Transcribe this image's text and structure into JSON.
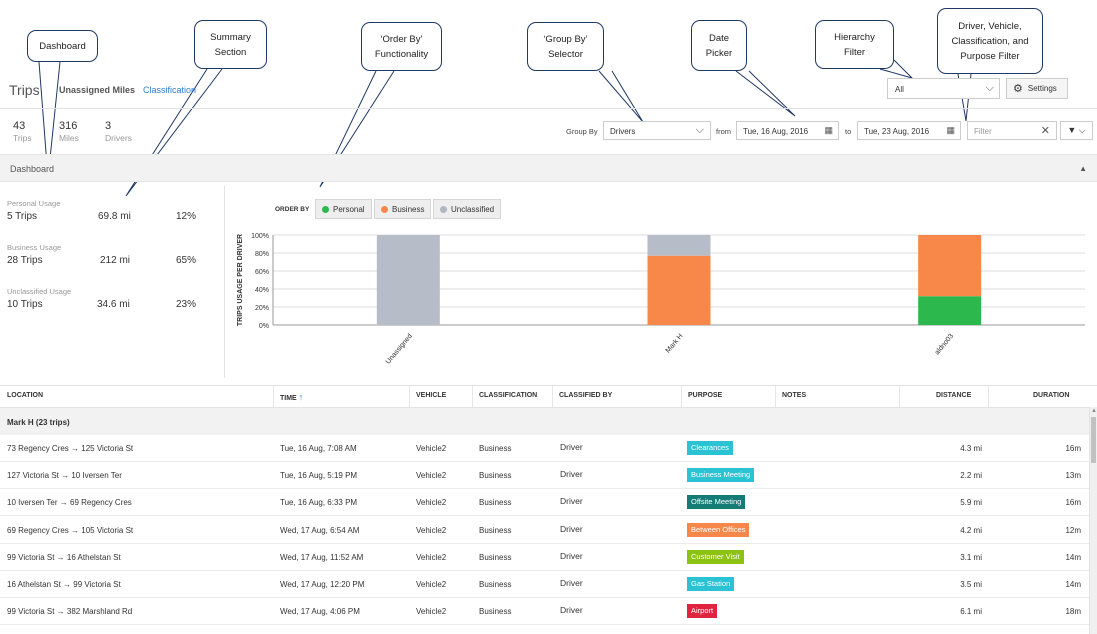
{
  "callouts": {
    "dashboard": "Dashboard",
    "summary": "Summary\nSection",
    "order_by": "‘Order By’\nFunctionality",
    "group_by": "‘Group By’\nSelector",
    "date_picker": "Date\nPicker",
    "hierarchy": "Hierarchy\nFilter",
    "filters": "Driver, Vehicle,\nClassification, and\nPurpose Filter"
  },
  "header": {
    "title": "Trips",
    "tabs": [
      "Unassigned Miles",
      "Classification"
    ],
    "hierarchy_value": "All",
    "settings_label": "Settings"
  },
  "stats": [
    {
      "value": "43",
      "label": "Trips"
    },
    {
      "value": "316",
      "label": "Miles"
    },
    {
      "value": "3",
      "label": "Drivers"
    }
  ],
  "toolbar": {
    "group_by_label": "Group By",
    "group_by_value": "Drivers",
    "from_label": "from",
    "from_date": "Tue, 16 Aug, 2016",
    "to_label": "to",
    "to_date": "Tue, 23 Aug, 2016",
    "filter_placeholder": "Filter"
  },
  "dashboard": {
    "title": "Dashboard",
    "summary": [
      {
        "heading": "Personal Usage",
        "trips": "5 Trips",
        "miles": "69.8 mi",
        "pct": "12%"
      },
      {
        "heading": "Business Usage",
        "trips": "28 Trips",
        "miles": "212 mi",
        "pct": "65%"
      },
      {
        "heading": "Unclassified Usage",
        "trips": "10 Trips",
        "miles": "34.6 mi",
        "pct": "23%"
      }
    ],
    "order_by_label": "ORDER BY",
    "order_chips": [
      {
        "label": "Personal",
        "color": "#2db84d"
      },
      {
        "label": "Business",
        "color": "#f7884a"
      },
      {
        "label": "Unclassified",
        "color": "#b0b6c2"
      }
    ]
  },
  "chart_data": {
    "type": "bar",
    "stacked": true,
    "ylabel": "TRIPS USAGE PER DRIVER",
    "ylim": [
      0,
      100
    ],
    "yticks": [
      "0%",
      "20%",
      "40%",
      "60%",
      "80%",
      "100%"
    ],
    "categories": [
      "Unassigned",
      "Mark H",
      "aldno03"
    ],
    "series": [
      {
        "name": "Personal",
        "color": "#2db84d",
        "values": [
          0,
          0,
          32
        ]
      },
      {
        "name": "Business",
        "color": "#f7884a",
        "values": [
          0,
          77,
          68
        ]
      },
      {
        "name": "Unclassified",
        "color": "#b6bcc8",
        "values": [
          100,
          23,
          0
        ]
      }
    ],
    "grid": true
  },
  "table": {
    "columns": [
      "LOCATION",
      "TIME",
      "VEHICLE",
      "CLASSIFICATION",
      "CLASSIFIED BY",
      "PURPOSE",
      "NOTES",
      "DISTANCE",
      "DURATION"
    ],
    "sort_arrow": "↑",
    "group_label": "Mark H (23 trips)",
    "rows": [
      {
        "location": "73 Regency Cres → 125 Victoria St",
        "time": "Tue, 16 Aug, 7:08 AM",
        "vehicle": "Vehicle2",
        "classification": "Business",
        "classified_by": "Driver",
        "purpose": "Clearances",
        "purpose_color": "#2bc3d4",
        "distance": "4.3 mi",
        "duration": "16m"
      },
      {
        "location": "127 Victoria St → 10 Iversen Ter",
        "time": "Tue, 16 Aug, 5:19 PM",
        "vehicle": "Vehicle2",
        "classification": "Business",
        "classified_by": "Driver",
        "purpose": "Business Meeting",
        "purpose_color": "#2bc3d4",
        "distance": "2.2 mi",
        "duration": "13m"
      },
      {
        "location": "10 Iversen Ter → 69 Regency Cres",
        "time": "Tue, 16 Aug, 6:33 PM",
        "vehicle": "Vehicle2",
        "classification": "Business",
        "classified_by": "Driver",
        "purpose": "Offsite Meeting",
        "purpose_color": "#157b76",
        "distance": "5.9 mi",
        "duration": "16m"
      },
      {
        "location": "69 Regency Cres → 105 Victoria St",
        "time": "Wed, 17 Aug, 6:54 AM",
        "vehicle": "Vehicle2",
        "classification": "Business",
        "classified_by": "Driver",
        "purpose": "Between Offices",
        "purpose_color": "#f7884a",
        "distance": "4.2 mi",
        "duration": "12m"
      },
      {
        "location": "99 Victoria St → 16 Athelstan St",
        "time": "Wed, 17 Aug, 11:52 AM",
        "vehicle": "Vehicle2",
        "classification": "Business",
        "classified_by": "Driver",
        "purpose": "Customer Visit",
        "purpose_color": "#8cc313",
        "distance": "3.1 mi",
        "duration": "14m"
      },
      {
        "location": "16 Athelstan St → 99 Victoria St",
        "time": "Wed, 17 Aug, 12:20 PM",
        "vehicle": "Vehicle2",
        "classification": "Business",
        "classified_by": "Driver",
        "purpose": "Gas Station",
        "purpose_color": "#2bc3d4",
        "distance": "3.5 mi",
        "duration": "14m"
      },
      {
        "location": "99 Victoria St → 382 Marshland Rd",
        "time": "Wed, 17 Aug, 4:06 PM",
        "vehicle": "Vehicle2",
        "classification": "Business",
        "classified_by": "Driver",
        "purpose": "Airport",
        "purpose_color": "#e0243f",
        "distance": "6.1 mi",
        "duration": "18m"
      }
    ]
  }
}
